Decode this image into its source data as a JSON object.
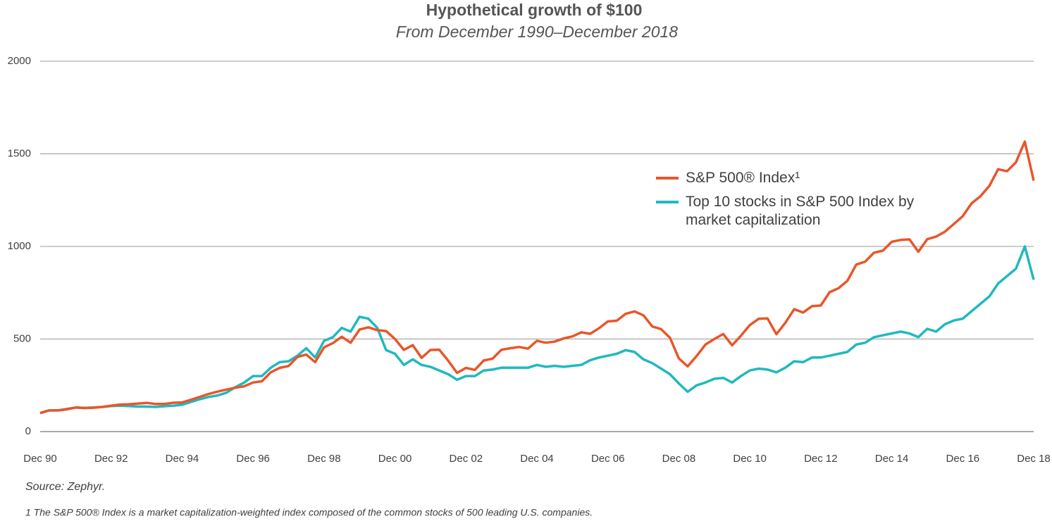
{
  "chart_data": {
    "type": "line",
    "title": "Hypothetical growth of $100",
    "subtitle": "From December 1990–December 2018",
    "source": "Source: Zephyr.",
    "note": "1 The S&P 500® Index is a market capitalization-weighted index composed of the common stocks of 500 leading U.S. companies.",
    "categories": [
      "Dec 90",
      null,
      null,
      null,
      null,
      null,
      null,
      null,
      "Dec 92",
      null,
      null,
      null,
      null,
      null,
      null,
      null,
      "Dec 94",
      null,
      null,
      null,
      null,
      null,
      null,
      null,
      "Dec 96",
      null,
      null,
      null,
      null,
      null,
      null,
      null,
      "Dec 98",
      null,
      null,
      null,
      null,
      null,
      null,
      null,
      "Dec 00",
      null,
      null,
      null,
      null,
      null,
      null,
      null,
      "Dec 02",
      null,
      null,
      null,
      null,
      null,
      null,
      null,
      "Dec 04",
      null,
      null,
      null,
      null,
      null,
      null,
      null,
      "Dec 06",
      null,
      null,
      null,
      null,
      null,
      null,
      null,
      "Dec 08",
      null,
      null,
      null,
      null,
      null,
      null,
      null,
      "Dec 10",
      null,
      null,
      null,
      null,
      null,
      null,
      null,
      "Dec 12",
      null,
      null,
      null,
      null,
      null,
      null,
      null,
      "Dec 14",
      null,
      null,
      null,
      null,
      null,
      null,
      null,
      "Dec 16",
      null,
      null,
      null,
      null,
      null,
      null,
      null,
      "Dec 18"
    ],
    "series": [
      {
        "name": "S&P 500® Index¹",
        "color": "#e8562a",
        "values": [
          100,
          114,
          114,
          120,
          130,
          127,
          129,
          133,
          140,
          146,
          147,
          151,
          155,
          149,
          149,
          156,
          157,
          172,
          188,
          203,
          216,
          227,
          237,
          245,
          265,
          272,
          320,
          344,
          354,
          403,
          416,
          375,
          455,
          478,
          512,
          480,
          551,
          563,
          548,
          543,
          500,
          441,
          467,
          398,
          441,
          442,
          383,
          317,
          344,
          333,
          384,
          394,
          442,
          450,
          457,
          448,
          490,
          480,
          486,
          503,
          514,
          536,
          528,
          558,
          595,
          599,
          636,
          649,
          628,
          568,
          553,
          507,
          395,
          352,
          408,
          470,
          500,
          527,
          466,
          518,
          575,
          609,
          611,
          526,
          587,
          661,
          643,
          677,
          681,
          753,
          774,
          814,
          902,
          918,
          966,
          977,
          1025,
          1035,
          1038,
          971,
          1039,
          1053,
          1080,
          1121,
          1163,
          1233,
          1271,
          1327,
          1417,
          1406,
          1454,
          1566,
          1355
        ]
      },
      {
        "name": "Top 10 stocks in S&P 500 Index by market capitalization",
        "color": "#20b9bf",
        "values": [
          100,
          115,
          115,
          122,
          130,
          128,
          130,
          133,
          138,
          140,
          138,
          135,
          135,
          133,
          137,
          140,
          145,
          160,
          175,
          187,
          195,
          210,
          240,
          265,
          300,
          300,
          345,
          375,
          380,
          410,
          450,
          400,
          490,
          510,
          560,
          540,
          620,
          610,
          560,
          440,
          420,
          360,
          390,
          360,
          350,
          330,
          310,
          280,
          300,
          300,
          330,
          335,
          345,
          345,
          345,
          345,
          360,
          350,
          355,
          350,
          355,
          360,
          385,
          400,
          410,
          420,
          440,
          430,
          390,
          370,
          340,
          310,
          260,
          215,
          250,
          265,
          285,
          290,
          265,
          300,
          330,
          340,
          335,
          320,
          345,
          380,
          375,
          400,
          400,
          410,
          420,
          430,
          470,
          480,
          510,
          520,
          530,
          540,
          530,
          510,
          555,
          540,
          580,
          600,
          610,
          650,
          690,
          730,
          800,
          840,
          880,
          1000,
          820
        ]
      }
    ],
    "ylim": [
      0,
      2000
    ],
    "yticks": [
      0,
      500,
      1000,
      1500,
      2000
    ],
    "grid": true
  }
}
